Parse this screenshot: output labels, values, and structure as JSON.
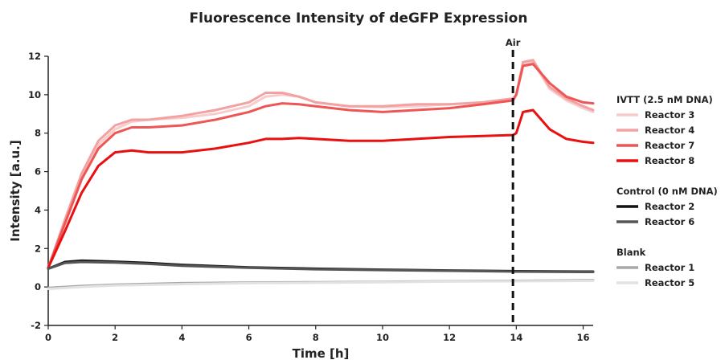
{
  "chart_data": {
    "type": "line",
    "title": "Fluorescence Intensity of deGFP Expression",
    "xlabel": "Time [h]",
    "ylabel": "Intensity [a.u.]",
    "xlim": [
      0,
      16.3
    ],
    "ylim": [
      -2,
      12
    ],
    "xticks": [
      0,
      2,
      4,
      6,
      8,
      10,
      12,
      14,
      16
    ],
    "yticks": [
      -2,
      0,
      2,
      4,
      6,
      8,
      10,
      12
    ],
    "grid": false,
    "legend_position": "right",
    "annotation": {
      "label": "Air",
      "x": 13.9
    },
    "legend_groups": [
      {
        "title": "IVTT (2.5 nM DNA)",
        "series": [
          "Reactor 3",
          "Reactor 4",
          "Reactor 7",
          "Reactor 8"
        ]
      },
      {
        "title": "Control (0 nM DNA)",
        "series": [
          "Reactor 2",
          "Reactor 6"
        ]
      },
      {
        "title": "Blank",
        "series": [
          "Reactor 1",
          "Reactor 5"
        ]
      }
    ],
    "series": [
      {
        "name": "Reactor 3",
        "color": "#f8cccc",
        "x": [
          0,
          0.5,
          1,
          1.5,
          2,
          2.5,
          3,
          4,
          5,
          6,
          6.5,
          7,
          7.5,
          8,
          9,
          10,
          11,
          12,
          13,
          13.9,
          14,
          14.2,
          14.5,
          15,
          15.5,
          16,
          16.3
        ],
        "y": [
          1,
          3.4,
          5.8,
          7.4,
          8.2,
          8.6,
          8.7,
          8.8,
          9.0,
          9.4,
          9.9,
          10.0,
          9.9,
          9.6,
          9.4,
          9.35,
          9.4,
          9.5,
          9.6,
          9.8,
          10.0,
          11.6,
          11.7,
          10.3,
          9.7,
          9.3,
          9.1
        ]
      },
      {
        "name": "Reactor 4",
        "color": "#f2a2a2",
        "x": [
          0,
          0.5,
          1,
          1.5,
          2,
          2.5,
          3,
          4,
          5,
          6,
          6.5,
          7,
          7.5,
          8,
          9,
          10,
          11,
          12,
          13,
          13.9,
          14,
          14.2,
          14.5,
          15,
          15.5,
          16,
          16.3
        ],
        "y": [
          1,
          3.5,
          5.9,
          7.6,
          8.4,
          8.7,
          8.7,
          8.9,
          9.2,
          9.6,
          10.1,
          10.1,
          9.9,
          9.6,
          9.4,
          9.4,
          9.5,
          9.5,
          9.6,
          9.8,
          10.0,
          11.7,
          11.8,
          10.4,
          9.8,
          9.4,
          9.2
        ]
      },
      {
        "name": "Reactor 7",
        "color": "#ee5555",
        "x": [
          0,
          0.5,
          1,
          1.5,
          2,
          2.5,
          3,
          4,
          5,
          6,
          6.5,
          7,
          7.5,
          8,
          9,
          10,
          11,
          12,
          13,
          13.9,
          14,
          14.2,
          14.5,
          15,
          15.5,
          16,
          16.3
        ],
        "y": [
          1,
          3.3,
          5.6,
          7.2,
          8.0,
          8.3,
          8.3,
          8.4,
          8.7,
          9.1,
          9.4,
          9.55,
          9.5,
          9.4,
          9.2,
          9.1,
          9.2,
          9.3,
          9.5,
          9.7,
          10.0,
          11.5,
          11.6,
          10.6,
          9.9,
          9.6,
          9.55
        ]
      },
      {
        "name": "Reactor 8",
        "color": "#e81010",
        "x": [
          0,
          0.5,
          1,
          1.5,
          2,
          2.5,
          3,
          4,
          5,
          6,
          6.5,
          7,
          7.5,
          8,
          9,
          10,
          11,
          12,
          13,
          13.9,
          14,
          14.2,
          14.5,
          15,
          15.5,
          16,
          16.3
        ],
        "y": [
          1,
          2.9,
          4.9,
          6.3,
          7.0,
          7.1,
          7.0,
          7.0,
          7.2,
          7.5,
          7.7,
          7.7,
          7.75,
          7.7,
          7.6,
          7.6,
          7.7,
          7.8,
          7.85,
          7.9,
          8.0,
          9.1,
          9.2,
          8.2,
          7.7,
          7.55,
          7.5
        ]
      },
      {
        "name": "Reactor 2",
        "color": "#111111",
        "x": [
          0,
          0.5,
          1,
          2,
          3,
          4,
          6,
          8,
          10,
          12,
          14,
          16,
          16.3
        ],
        "y": [
          0.95,
          1.3,
          1.37,
          1.32,
          1.25,
          1.15,
          1.02,
          0.95,
          0.9,
          0.86,
          0.82,
          0.8,
          0.8
        ]
      },
      {
        "name": "Reactor 6",
        "color": "#555555",
        "x": [
          0,
          0.5,
          1,
          2,
          3,
          4,
          6,
          8,
          10,
          12,
          14,
          16,
          16.3
        ],
        "y": [
          0.95,
          1.25,
          1.3,
          1.27,
          1.2,
          1.1,
          1.0,
          0.92,
          0.88,
          0.84,
          0.8,
          0.78,
          0.78
        ]
      },
      {
        "name": "Reactor 1",
        "color": "#a8a8a8",
        "x": [
          0,
          1,
          2,
          4,
          6,
          8,
          10,
          12,
          14,
          16,
          16.3
        ],
        "y": [
          -0.05,
          0.05,
          0.12,
          0.2,
          0.23,
          0.25,
          0.27,
          0.3,
          0.32,
          0.35,
          0.35
        ]
      },
      {
        "name": "Reactor 5",
        "color": "#e2e2e2",
        "x": [
          0,
          1,
          2,
          4,
          6,
          8,
          10,
          12,
          14,
          16,
          16.3
        ],
        "y": [
          -0.1,
          0.0,
          0.08,
          0.15,
          0.2,
          0.22,
          0.25,
          0.28,
          0.3,
          0.32,
          0.32
        ]
      }
    ]
  }
}
